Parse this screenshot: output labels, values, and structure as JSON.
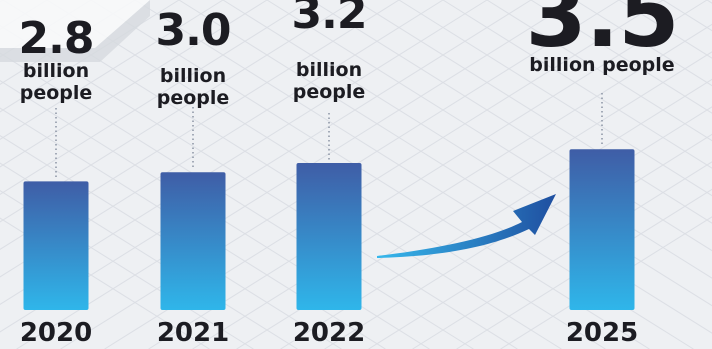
{
  "colors": {
    "bar_top": "#3f5da6",
    "bar_bottom": "#2fb6ea",
    "arrow_start": "#36b8ec",
    "arrow_end": "#1f4fa0",
    "text": "#1c1c22",
    "background": "#eef0f3",
    "grid": "#dcdfe5",
    "connector": "#8a93a3"
  },
  "chart_data": {
    "type": "bar",
    "categories": [
      "2020",
      "2021",
      "2022",
      "2025"
    ],
    "values": [
      2.8,
      3.0,
      3.2,
      3.5
    ],
    "value_labels": [
      "2.8",
      "3.0",
      "3.2",
      "3.5"
    ],
    "unit_labels": [
      "billion\npeople",
      "billion\npeople",
      "billion\npeople",
      "billion people"
    ],
    "title": "",
    "xlabel": "",
    "ylabel": "",
    "ylim": [
      0,
      3.5
    ],
    "grid": false,
    "legend": "none",
    "annotations": [
      {
        "type": "arrow",
        "from": "2022",
        "to": "2025"
      }
    ]
  }
}
